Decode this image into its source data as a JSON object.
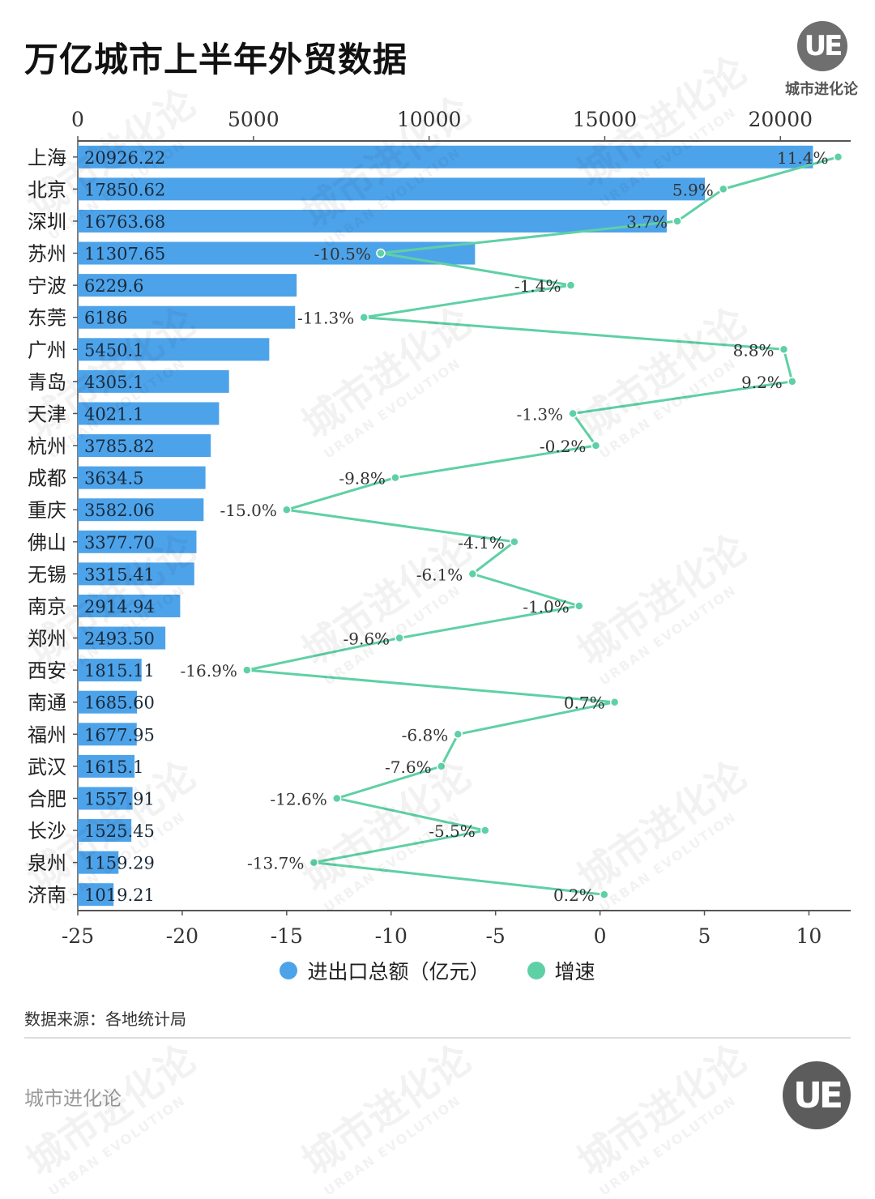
{
  "title": "万亿城市上半年外贸数据",
  "brand": {
    "name": "城市进化论",
    "logo_letters": "UE",
    "logo_sub": "URBAN EVOLUTION"
  },
  "source": "数据来源：各地统计局",
  "colors": {
    "bar": "#4da3ea",
    "line": "#5fd0a5",
    "axis": "#555555"
  },
  "chart_data": {
    "type": "bar",
    "orientation": "horizontal",
    "categories": [
      "上海",
      "北京",
      "深圳",
      "苏州",
      "宁波",
      "东莞",
      "广州",
      "青岛",
      "天津",
      "杭州",
      "成都",
      "重庆",
      "佛山",
      "无锡",
      "南京",
      "郑州",
      "西安",
      "南通",
      "福州",
      "武汉",
      "合肥",
      "长沙",
      "泉州",
      "济南"
    ],
    "series": [
      {
        "name": "进出口总额（亿元）",
        "type": "bar",
        "axis": "top",
        "values": [
          20926.22,
          17850.62,
          16763.68,
          11307.65,
          6229.6,
          6186,
          5450.1,
          4305.1,
          4021.1,
          3785.82,
          3634.5,
          3582.06,
          3377.7,
          3315.41,
          2914.94,
          2493.5,
          1815.11,
          1685.6,
          1677.95,
          1615.1,
          1557.91,
          1525.45,
          1159.29,
          1019.21
        ],
        "labels": [
          "20926.22",
          "17850.62",
          "16763.68",
          "11307.65",
          "6229.6",
          "6186",
          "5450.1",
          "4305.1",
          "4021.1",
          "3785.82",
          "3634.5",
          "3582.06",
          "3377.70",
          "3315.41",
          "2914.94",
          "2493.50",
          "1815.11",
          "1685.60",
          "1677.95",
          "1615.1",
          "1557.91",
          "1525.45",
          "1159.29",
          "1019.21"
        ]
      },
      {
        "name": "增速",
        "type": "line",
        "axis": "bottom",
        "values": [
          11.4,
          5.9,
          3.7,
          -10.5,
          -1.4,
          -11.3,
          8.8,
          9.2,
          -1.3,
          -0.2,
          -9.8,
          -15.0,
          -4.1,
          -6.1,
          -1.0,
          -9.6,
          -16.9,
          0.7,
          -6.8,
          -7.6,
          -12.6,
          -5.5,
          -13.7,
          0.2
        ],
        "labels": [
          "11.4%",
          "5.9%",
          "3.7%",
          "-10.5%",
          "-1.4%",
          "-11.3%",
          "8.8%",
          "9.2%",
          "-1.3%",
          "-0.2%",
          "-9.8%",
          "-15.0%",
          "-4.1%",
          "-6.1%",
          "-1.0%",
          "-9.6%",
          "-16.9%",
          "0.7%",
          "-6.8%",
          "-7.6%",
          "-12.6%",
          "-5.5%",
          "-13.7%",
          "0.2%"
        ]
      }
    ],
    "top_axis": {
      "range": [
        0,
        22000
      ],
      "ticks": [
        0,
        5000,
        10000,
        15000,
        20000
      ],
      "tick_labels": [
        "0",
        "5000",
        "10000",
        "15000",
        "20000"
      ]
    },
    "bottom_axis": {
      "range": [
        -25,
        12
      ],
      "ticks": [
        -25,
        -20,
        -15,
        -10,
        -5,
        0,
        5,
        10
      ],
      "tick_labels": [
        "-25",
        "-20",
        "-15",
        "-10",
        "-5",
        "0",
        "5",
        "10"
      ]
    },
    "legend": [
      "进出口总额（亿元）",
      "增速"
    ],
    "legend_position": "bottom"
  }
}
